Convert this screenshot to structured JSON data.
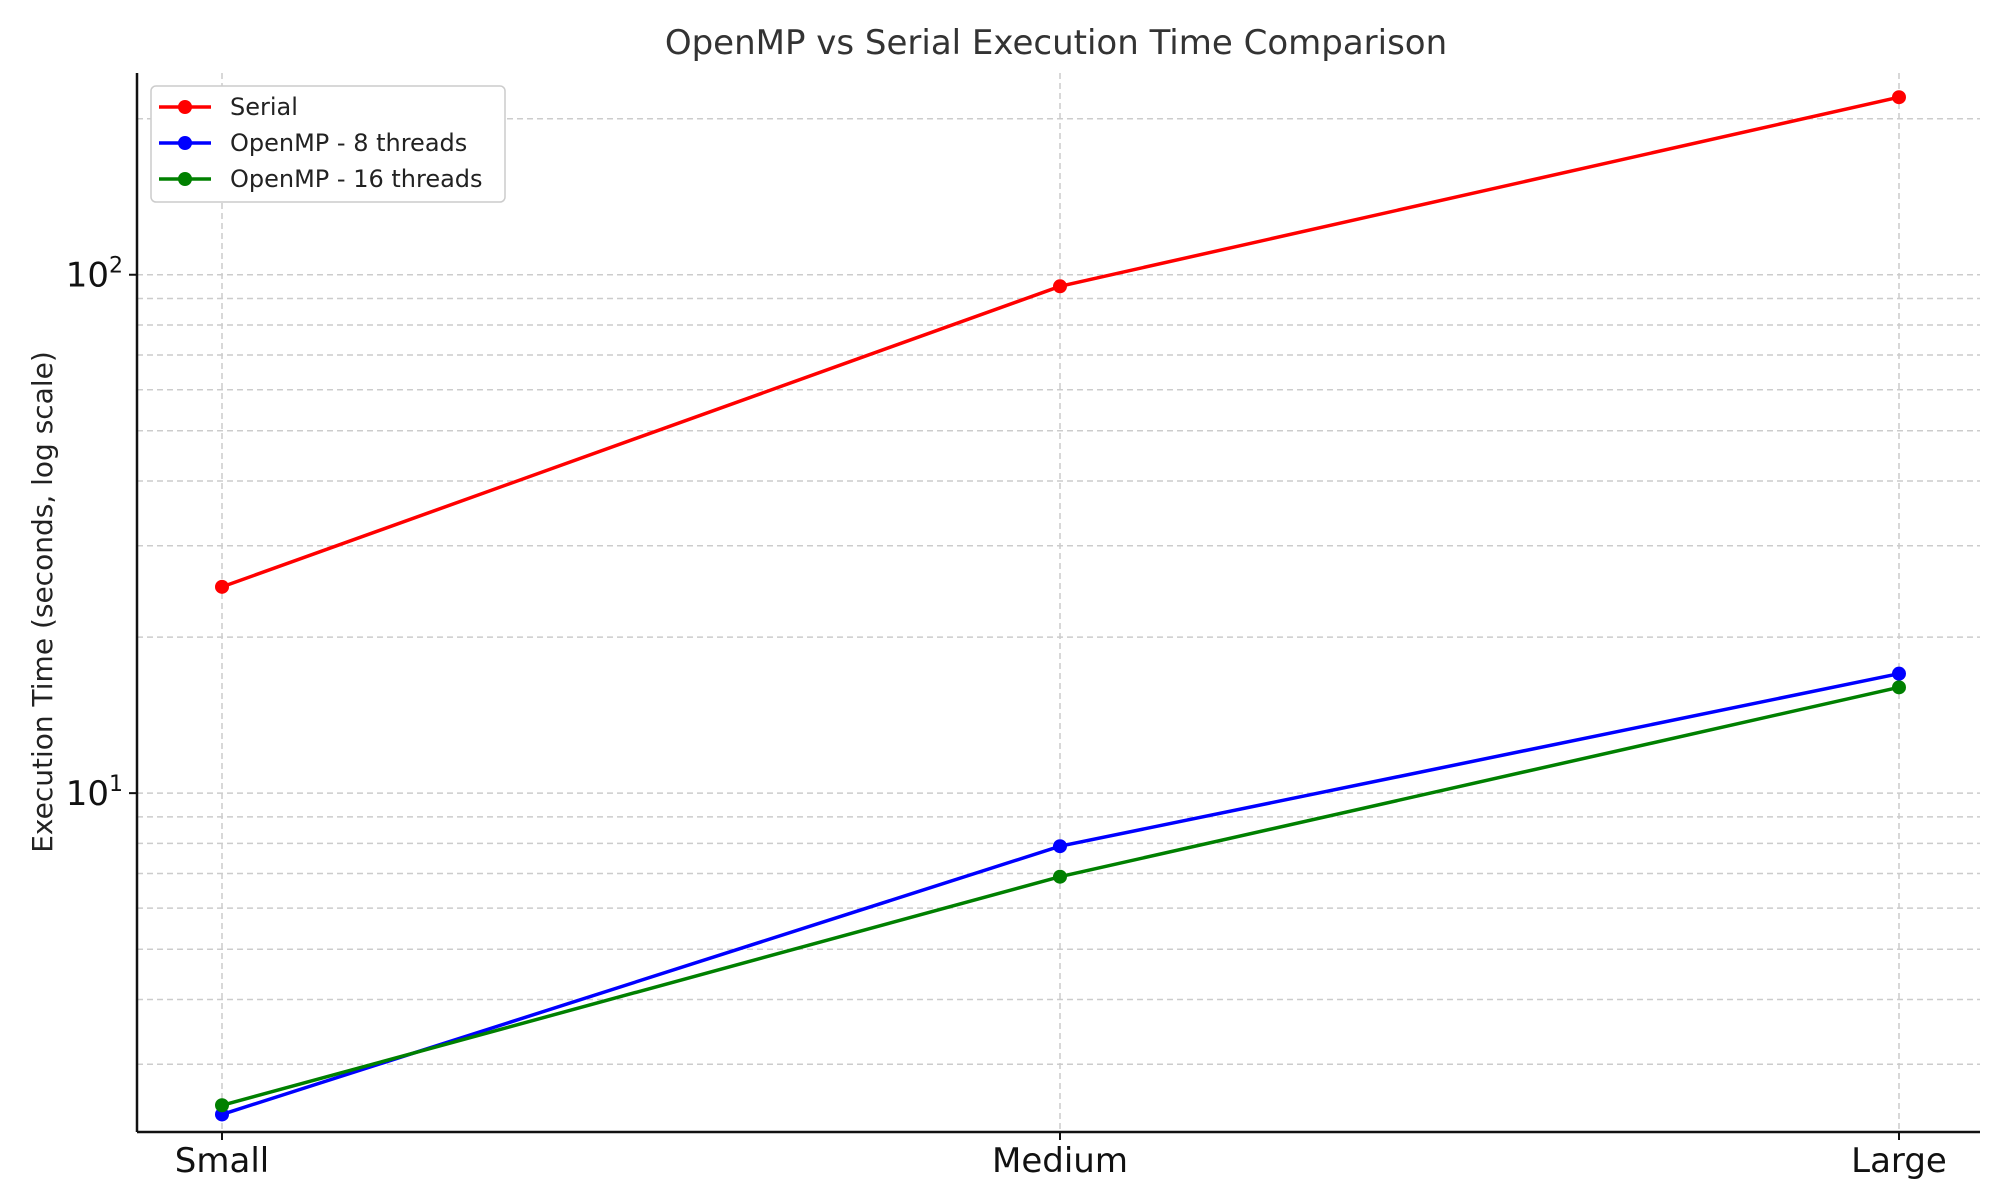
{
  "chart_data": {
    "type": "line",
    "title": "OpenMP vs Serial Execution Time Comparison",
    "xlabel": "",
    "ylabel": "Execution Time (seconds, log scale)",
    "yscale": "log",
    "ylim": [
      2.22,
      245
    ],
    "categories": [
      "Small",
      "Medium",
      "Large"
    ],
    "yticks": [
      {
        "value": 10,
        "base": "10",
        "exp": "1"
      },
      {
        "value": 100,
        "base": "10",
        "exp": "2"
      }
    ],
    "grid": true,
    "legend": "top-left",
    "series": [
      {
        "name": "Serial",
        "color": "#ff0000",
        "values": [
          25,
          95,
          220
        ]
      },
      {
        "name": "OpenMP - 8 threads",
        "color": "#0000ff",
        "values": [
          2.4,
          7.9,
          17
        ]
      },
      {
        "name": "OpenMP - 16 threads",
        "color": "#008000",
        "values": [
          2.5,
          6.9,
          16
        ]
      }
    ]
  }
}
